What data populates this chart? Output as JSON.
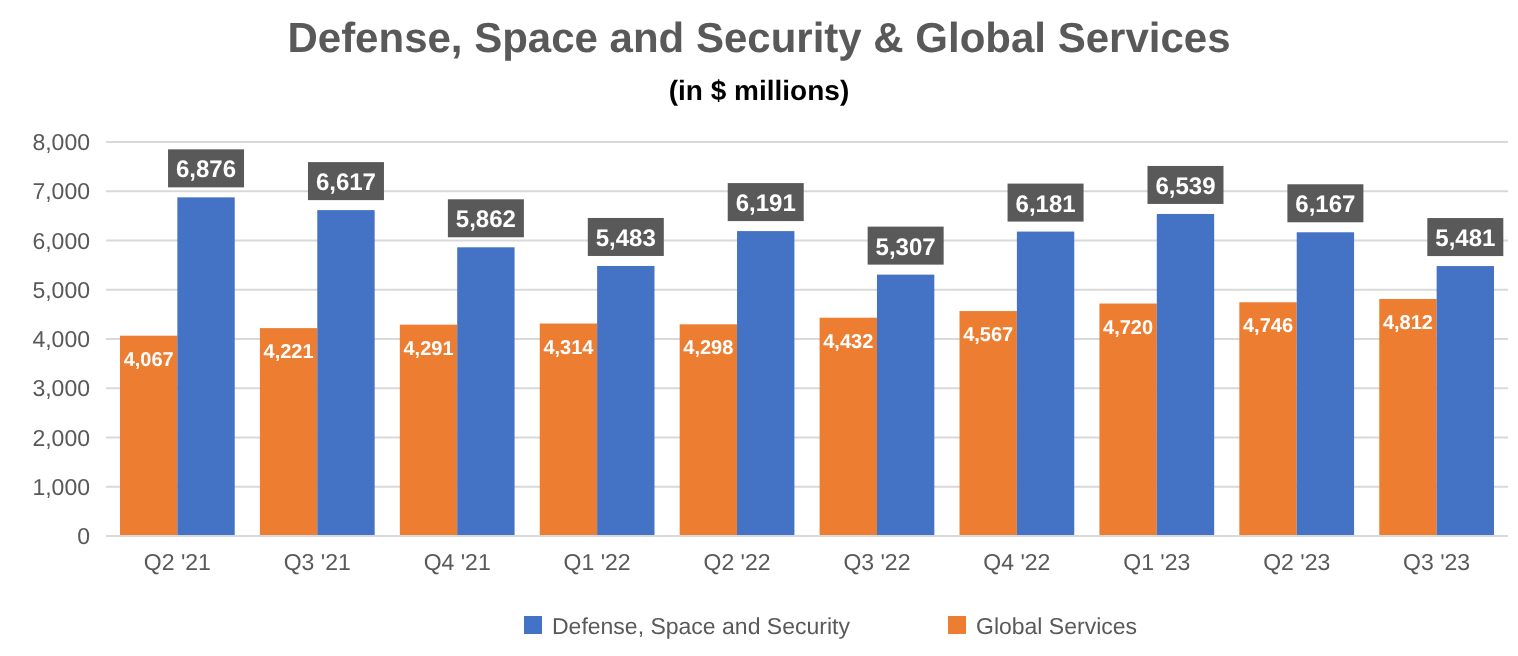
{
  "chart_data": {
    "type": "bar",
    "title": "Defense, Space and Security & Global Services",
    "subtitle": "(in $ millions)",
    "categories": [
      "Q2 '21",
      "Q3 '21",
      "Q4 '21",
      "Q1 '22",
      "Q2 '22",
      "Q3 '22",
      "Q4 '22",
      "Q1 '23",
      "Q2 '23",
      "Q3 '23"
    ],
    "series": [
      {
        "name": "Global Services",
        "color": "#ed7d31",
        "values": [
          4067,
          4221,
          4291,
          4314,
          4298,
          4432,
          4567,
          4720,
          4746,
          4812
        ],
        "value_labels": [
          "4,067",
          "4,221",
          "4,291",
          "4,314",
          "4,298",
          "4,432",
          "4,567",
          "4,720",
          "4,746",
          "4,812"
        ]
      },
      {
        "name": "Defense, Space and Security",
        "color": "#4472c4",
        "values": [
          6876,
          6617,
          5862,
          5483,
          6191,
          5307,
          6181,
          6539,
          6167,
          5481
        ],
        "value_labels": [
          "6,876",
          "6,617",
          "5,862",
          "5,483",
          "6,191",
          "5,307",
          "6,181",
          "6,539",
          "6,167",
          "5,481"
        ]
      }
    ],
    "ylim": [
      0,
      8000
    ],
    "yticks": [
      {
        "value": 0,
        "label": "0"
      },
      {
        "value": 1000,
        "label": "1,000"
      },
      {
        "value": 2000,
        "label": "2,000"
      },
      {
        "value": 3000,
        "label": "3,000"
      },
      {
        "value": 4000,
        "label": "4,000"
      },
      {
        "value": 5000,
        "label": "5,000"
      },
      {
        "value": 6000,
        "label": "6,000"
      },
      {
        "value": 7000,
        "label": "7,000"
      },
      {
        "value": 8000,
        "label": "8,000"
      }
    ],
    "grid": "y",
    "legend": "bottom"
  }
}
